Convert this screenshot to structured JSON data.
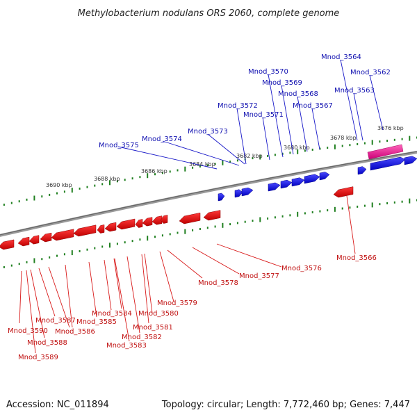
{
  "title": "Methylobacterium nodulans ORS 2060, complete genome",
  "footer": {
    "accession": "Accession: NC_011894",
    "summary": "Topology: circular; Length: 7,772,460 bp; Genes: 7,447"
  },
  "colors": {
    "forward": "#0000ee",
    "reverse": "#ee0000",
    "rna": "#ee2288",
    "backbone": "#808080",
    "scale": "#208020"
  },
  "scale_labels": [
    {
      "label": "3690 kbp",
      "kbp": 3690
    },
    {
      "label": "3688 kbp",
      "kbp": 3688
    },
    {
      "label": "3686 kbp",
      "kbp": 3686
    },
    {
      "label": "3684 kbp",
      "kbp": 3684
    },
    {
      "label": "3682 kbp",
      "kbp": 3682
    },
    {
      "label": "3680 kbp",
      "kbp": 3680
    },
    {
      "label": "3678 kbp",
      "kbp": 3678
    },
    {
      "label": "3676 kbp",
      "kbp": 3676
    }
  ],
  "forward_genes": [
    {
      "name": "Mnod_3575"
    },
    {
      "name": "Mnod_3574"
    },
    {
      "name": "Mnod_3573"
    },
    {
      "name": "Mnod_3572"
    },
    {
      "name": "Mnod_3571"
    },
    {
      "name": "Mnod_3570"
    },
    {
      "name": "Mnod_3569"
    },
    {
      "name": "Mnod_3568"
    },
    {
      "name": "Mnod_3567"
    },
    {
      "name": "Mnod_3564"
    },
    {
      "name": "Mnod_3563"
    },
    {
      "name": "Mnod_3562"
    }
  ],
  "reverse_genes": [
    {
      "name": "Mnod_3566"
    },
    {
      "name": "Mnod_3576"
    },
    {
      "name": "Mnod_3577"
    },
    {
      "name": "Mnod_3578"
    },
    {
      "name": "Mnod_3579"
    },
    {
      "name": "Mnod_3580"
    },
    {
      "name": "Mnod_3581"
    },
    {
      "name": "Mnod_3582"
    },
    {
      "name": "Mnod_3583"
    },
    {
      "name": "Mnod_3584"
    },
    {
      "name": "Mnod_3585"
    },
    {
      "name": "Mnod_3586"
    },
    {
      "name": "Mnod_3587"
    },
    {
      "name": "Mnod_3588"
    },
    {
      "name": "Mnod_3589"
    },
    {
      "name": "Mnod_3590"
    }
  ]
}
